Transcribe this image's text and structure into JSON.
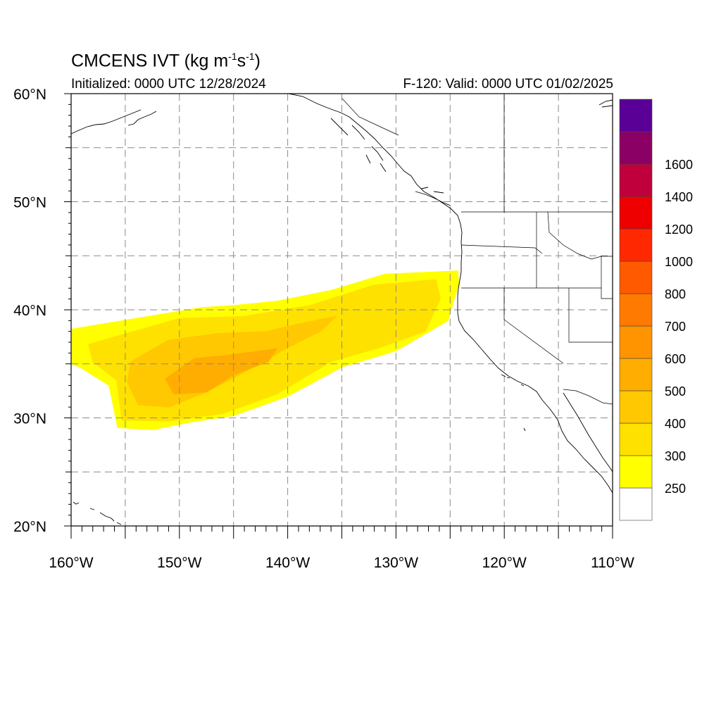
{
  "header": {
    "title_main": "CMCENS IVT (kg m",
    "title_exp1": "-1",
    "title_mid": "s",
    "title_exp2": "-1",
    "title_end": ")",
    "initialized": "Initialized: 0000 UTC 12/28/2024",
    "valid": "F-120: Valid: 0000 UTC 01/02/2025"
  },
  "map": {
    "projection": "cylindrical equidistant",
    "lon_range": [
      -160,
      -110
    ],
    "lat_range": [
      20,
      60
    ],
    "grid": "dashed, every 5 degrees",
    "lat_labels": [
      "60°N",
      "50°N",
      "40°N",
      "30°N",
      "20°N"
    ],
    "lon_labels": [
      "160°W",
      "150°W",
      "140°W",
      "130°W",
      "120°W",
      "110°W"
    ]
  },
  "colorbar": {
    "labels": [
      "250",
      "300",
      "400",
      "500",
      "600",
      "700",
      "800",
      "1000",
      "1200",
      "1400",
      "1600"
    ],
    "colors": [
      "#ffffff",
      "#ffff00",
      "#ffe100",
      "#ffc800",
      "#ffad00",
      "#ff9400",
      "#ff7a00",
      "#ff5a00",
      "#ff2800",
      "#ee0000",
      "#c0003c",
      "#8b0064",
      "#5a0096"
    ]
  },
  "chart_data": {
    "type": "heatmap",
    "variable": "IVT",
    "units": "kg m-1 s-1",
    "levels": [
      250,
      300,
      400,
      500,
      600,
      700,
      800,
      1000,
      1200,
      1400,
      1600
    ],
    "features": [
      {
        "level_min": 250,
        "color": "#ffff00",
        "lonlat": [
          [
            -160,
            38.2
          ],
          [
            -148,
            40.2
          ],
          [
            -145,
            40.4
          ],
          [
            -141,
            40.8
          ],
          [
            -136,
            41.8
          ],
          [
            -131,
            43.3
          ],
          [
            -124.3,
            43.6
          ],
          [
            -124.2,
            42.4
          ],
          [
            -125.2,
            39
          ],
          [
            -130,
            36.2
          ],
          [
            -135,
            34.7
          ],
          [
            -140,
            32
          ],
          [
            -145,
            30.2
          ],
          [
            -149,
            29.6
          ],
          [
            -152.5,
            28.9
          ],
          [
            -155.7,
            29.1
          ],
          [
            -156.5,
            33
          ],
          [
            -159.2,
            34.7
          ],
          [
            -160,
            35
          ]
        ]
      },
      {
        "level_min": 300,
        "color": "#ffe100",
        "lonlat": [
          [
            -158.4,
            36.8
          ],
          [
            -150,
            39.2
          ],
          [
            -144,
            39.4
          ],
          [
            -138,
            40.4
          ],
          [
            -132,
            42.3
          ],
          [
            -126.3,
            42.8
          ],
          [
            -125.9,
            41
          ],
          [
            -127.3,
            38
          ],
          [
            -131.5,
            36.5
          ],
          [
            -136,
            35.2
          ],
          [
            -141,
            32.2
          ],
          [
            -146,
            30.4
          ],
          [
            -151,
            29.7
          ],
          [
            -155.3,
            29.8
          ],
          [
            -155.8,
            33.5
          ],
          [
            -158,
            35.2
          ]
        ]
      },
      {
        "level_min": 400,
        "color": "#ffc800",
        "lonlat": [
          [
            -154.5,
            35.2
          ],
          [
            -151,
            37.2
          ],
          [
            -146.5,
            37.8
          ],
          [
            -142,
            38
          ],
          [
            -138.5,
            38.8
          ],
          [
            -135.5,
            39.4
          ],
          [
            -137,
            38
          ],
          [
            -140,
            36.5
          ],
          [
            -143.5,
            34.5
          ],
          [
            -147.5,
            32.4
          ],
          [
            -151,
            31
          ],
          [
            -153.8,
            31.2
          ],
          [
            -154.8,
            33.3
          ]
        ]
      },
      {
        "level_min": 500,
        "color": "#ffad00",
        "lonlat": [
          [
            -151.3,
            33.6
          ],
          [
            -148.6,
            35.5
          ],
          [
            -145.5,
            35.8
          ],
          [
            -141,
            36.4
          ],
          [
            -141.8,
            35.2
          ],
          [
            -145,
            34
          ],
          [
            -147.5,
            32.4
          ],
          [
            -150.5,
            32.2
          ]
        ]
      }
    ]
  }
}
